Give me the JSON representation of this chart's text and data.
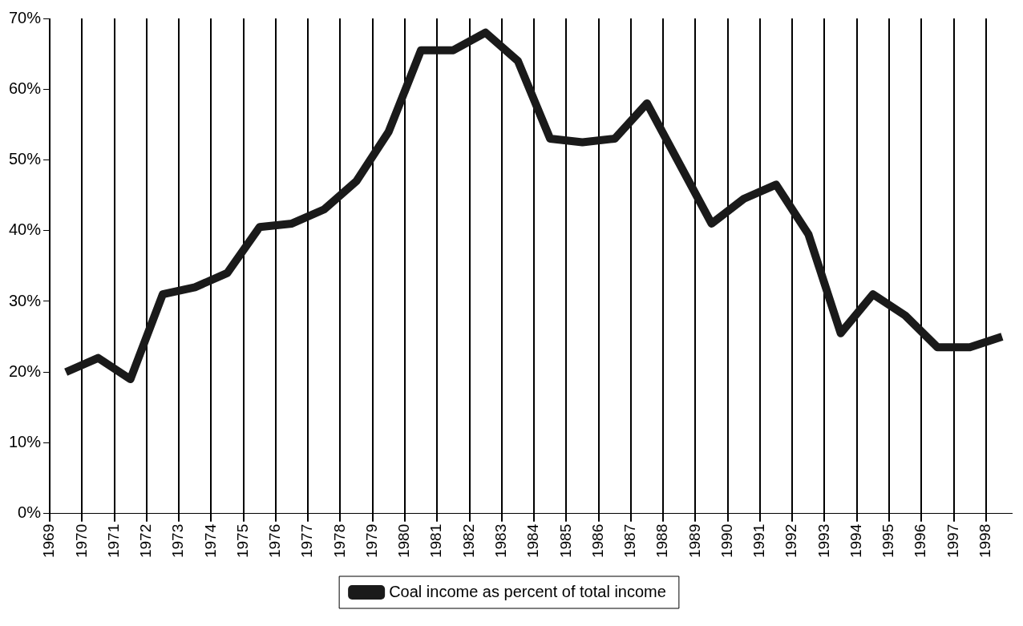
{
  "chart_data": {
    "type": "line",
    "x": [
      1969.5,
      1970.5,
      1971.5,
      1972.5,
      1973.5,
      1974.5,
      1975.5,
      1976.5,
      1977.5,
      1978.5,
      1979.5,
      1980.5,
      1981.5,
      1982.5,
      1983.5,
      1984.5,
      1985.5,
      1986.5,
      1987.5,
      1989.5,
      1990.5,
      1991.5,
      1992.5,
      1993.5,
      1994.5,
      1995.5,
      1996.5,
      1997.5,
      1998.5
    ],
    "series": [
      {
        "name": "Coal income as percent of total income",
        "color": "#1a1a1a",
        "values": [
          20,
          22,
          19,
          31,
          32,
          34,
          40.5,
          41,
          43,
          47,
          54,
          65.5,
          65.5,
          68,
          64,
          53,
          52.5,
          53,
          58,
          41,
          44.5,
          46.5,
          39.5,
          25.5,
          31,
          28,
          23.5,
          23.5,
          25
        ]
      }
    ],
    "xlim": [
      1969,
      1998.8
    ],
    "xticks": [
      1969,
      1970,
      1971,
      1972,
      1973,
      1974,
      1975,
      1976,
      1977,
      1978,
      1979,
      1980,
      1981,
      1982,
      1983,
      1984,
      1985,
      1986,
      1987,
      1988,
      1989,
      1990,
      1991,
      1992,
      1993,
      1994,
      1995,
      1996,
      1997,
      1998
    ],
    "ylim": [
      0,
      70
    ],
    "yticks": [
      {
        "value": 0,
        "label": "0%"
      },
      {
        "value": 10,
        "label": "10%"
      },
      {
        "value": 20,
        "label": "20%"
      },
      {
        "value": 30,
        "label": "30%"
      },
      {
        "value": 40,
        "label": "40%"
      },
      {
        "value": 50,
        "label": "50%"
      },
      {
        "value": 60,
        "label": "60%"
      },
      {
        "value": 70,
        "label": "70%"
      }
    ],
    "grid": "x",
    "legend": "bottom",
    "marker": "none",
    "line_style": "solid"
  }
}
